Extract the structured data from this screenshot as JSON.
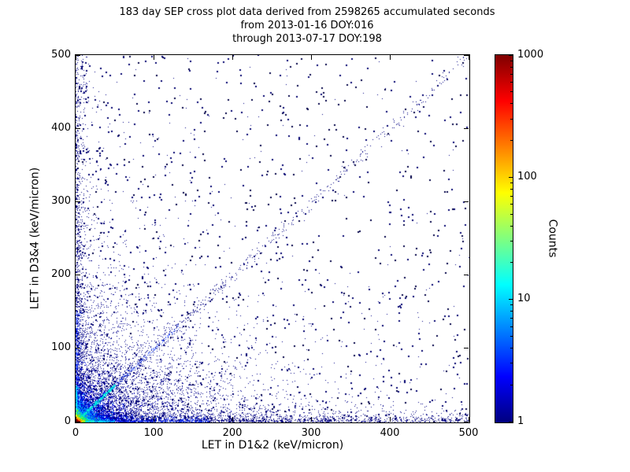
{
  "chart_data": {
    "type": "scatter",
    "title_lines": [
      "183 day SEP cross plot data derived from 2598265 accumulated seconds",
      "from 2013-01-16 DOY:016",
      "through 2013-07-17 DOY:198"
    ],
    "xlabel": "LET in D1&2 (keV/micron)",
    "ylabel": "LET in D3&4 (keV/micron)",
    "xlim": [
      0,
      500
    ],
    "ylim": [
      0,
      500
    ],
    "xticks": [
      0,
      100,
      200,
      300,
      400,
      500
    ],
    "yticks": [
      0,
      100,
      200,
      300,
      400,
      500
    ],
    "grid": false,
    "background_color": "#ffffff",
    "point_base_color": "#00008b",
    "colorbar": {
      "label": "Counts",
      "scale": "log",
      "ticks": [
        1,
        10,
        100,
        1000
      ],
      "range": [
        1,
        1000
      ],
      "colormap": "jet",
      "colors": [
        "#00007f",
        "#0000ff",
        "#00ffff",
        "#ffff00",
        "#ff0000",
        "#7f0000"
      ],
      "stops": [
        0,
        12.5,
        37.5,
        62.5,
        87.5,
        100
      ]
    },
    "density_model": {
      "description": "Point cloud strongly concentrated at the origin with hot (red/yellow/green/cyan) core below ~10 keV/micron, cyan streak along y=x near origin, dense dark-blue fans along both axes, a sparse y=x diagonal band, and isolated dark points scattered across the full 0-500 x 0-500 range.",
      "seed": 42,
      "layers": [
        {
          "type": "pow",
          "count": 350,
          "color": "#000046",
          "xmax": 500,
          "ymax": 500,
          "px": 1.0,
          "py": 1.0,
          "size": 2
        },
        {
          "type": "pow",
          "count": 900,
          "color": "#00006e",
          "xmax": 500,
          "ymax": 500,
          "px": 1.7,
          "py": 1.7,
          "size": 2
        },
        {
          "type": "pow",
          "count": 700,
          "color": "#000082",
          "xmax": 500,
          "ymax": 500,
          "px": 2.6,
          "py": 2.6,
          "size": 1
        },
        {
          "type": "exp",
          "count": 4500,
          "color": "#00008b",
          "ex": 75,
          "ey": 55,
          "size": 1
        },
        {
          "type": "stripx",
          "count": 2200,
          "color": "#000080",
          "xmax": 500,
          "p": 2.2,
          "ey": 5,
          "size": 1
        },
        {
          "type": "stripy",
          "count": 1200,
          "color": "#000080",
          "ymax": 500,
          "p": 2.2,
          "ex": 5,
          "size": 1
        },
        {
          "type": "stripx",
          "count": 600,
          "color": "#1e3cff",
          "xmax": 170,
          "p": 1.4,
          "ey": 2.2,
          "size": 1
        },
        {
          "type": "stripy",
          "count": 400,
          "color": "#1e3cff",
          "ymax": 150,
          "p": 1.4,
          "ex": 2.2,
          "size": 1
        },
        {
          "type": "diag",
          "count": 700,
          "color": "#000080",
          "tmax": 500,
          "tp": 2.2,
          "sigma": 4.5,
          "size": 1
        },
        {
          "type": "diag",
          "count": 300,
          "color": "#2a50ff",
          "tmax": 130,
          "tp": 1.5,
          "sigma": 1.8,
          "size": 1
        },
        {
          "type": "exp",
          "count": 2600,
          "color": "#0000dc",
          "ex": 17,
          "ey": 14,
          "size": 1
        },
        {
          "type": "exp",
          "count": 1400,
          "color": "#0064ff",
          "ex": 10,
          "ey": 8.5,
          "size": 1
        },
        {
          "type": "exp",
          "count": 900,
          "color": "#00b4ff",
          "ex": 6.5,
          "ey": 5.5,
          "size": 1
        },
        {
          "type": "diag",
          "count": 450,
          "color": "#00e0e0",
          "tmax": 50,
          "tp": 1.1,
          "sigma": 1.2,
          "size": 1
        },
        {
          "type": "stripx",
          "count": 220,
          "color": "#00d2ff",
          "xmax": 50,
          "p": 1.2,
          "ey": 1.1,
          "size": 1
        },
        {
          "type": "stripy",
          "count": 200,
          "color": "#00d2ff",
          "ymax": 50,
          "p": 1.2,
          "ex": 1.1,
          "size": 1
        },
        {
          "type": "exp",
          "count": 550,
          "color": "#00e696",
          "ex": 4.2,
          "ey": 3.8,
          "size": 1
        },
        {
          "type": "exp",
          "count": 420,
          "color": "#66ff1e",
          "ex": 3.1,
          "ey": 2.8,
          "size": 1
        },
        {
          "type": "exp",
          "count": 320,
          "color": "#ffe600",
          "ex": 2.3,
          "ey": 2.1,
          "size": 1
        },
        {
          "type": "exp",
          "count": 220,
          "color": "#ff8c00",
          "ex": 1.7,
          "ey": 1.6,
          "size": 1
        },
        {
          "type": "exp",
          "count": 150,
          "color": "#e10000",
          "ex": 1.2,
          "ey": 1.1,
          "size": 1
        },
        {
          "type": "exp",
          "count": 90,
          "color": "#8c0000",
          "ex": 0.8,
          "ey": 0.8,
          "size": 1
        }
      ]
    }
  }
}
